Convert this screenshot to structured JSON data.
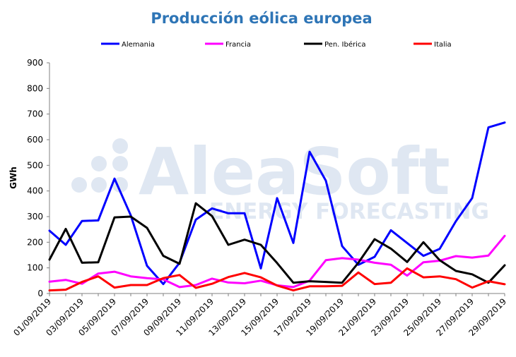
{
  "watermark": {
    "name": "AleaSoft",
    "subtitle": "ENERGY FORECASTING"
  },
  "chart_data": {
    "type": "line",
    "title": "Producción eólica europea",
    "ylabel": "GWh",
    "xlabel": "",
    "ylim": [
      0,
      900
    ],
    "yticks": [
      0,
      100,
      200,
      300,
      400,
      500,
      600,
      700,
      800,
      900
    ],
    "grid": false,
    "legend_position": "top",
    "x": [
      "01/09/2019",
      "02/09/2019",
      "03/09/2019",
      "04/09/2019",
      "05/09/2019",
      "06/09/2019",
      "07/09/2019",
      "08/09/2019",
      "09/09/2019",
      "10/09/2019",
      "11/09/2019",
      "12/09/2019",
      "13/09/2019",
      "14/09/2019",
      "15/09/2019",
      "16/09/2019",
      "17/09/2019",
      "18/09/2019",
      "19/09/2019",
      "20/09/2019",
      "21/09/2019",
      "22/09/2019",
      "23/09/2019",
      "24/09/2019",
      "25/09/2019",
      "26/09/2019",
      "27/09/2019",
      "28/09/2019",
      "29/09/2019"
    ],
    "xtick_labels": [
      "01/09/2019",
      "03/09/2019",
      "05/09/2019",
      "07/09/2019",
      "09/09/2019",
      "11/09/2019",
      "13/09/2019",
      "15/09/2019",
      "17/09/2019",
      "19/09/2019",
      "21/09/2019",
      "23/09/2019",
      "25/09/2019",
      "27/09/2019",
      "29/09/2019"
    ],
    "series": [
      {
        "name": "Alemania",
        "color": "#0000FF",
        "values": [
          245,
          190,
          283,
          285,
          448,
          305,
          108,
          37,
          120,
          288,
          332,
          313,
          313,
          98,
          372,
          197,
          553,
          440,
          185,
          112,
          143,
          247,
          197,
          147,
          174,
          282,
          372,
          648,
          667
        ]
      },
      {
        "name": "Francia",
        "color": "#FF00FF",
        "values": [
          46,
          53,
          38,
          78,
          85,
          67,
          60,
          55,
          25,
          33,
          58,
          43,
          40,
          50,
          32,
          25,
          50,
          130,
          138,
          132,
          120,
          112,
          70,
          122,
          128,
          146,
          140,
          148,
          225
        ]
      },
      {
        "name": "Pen. Ibérica",
        "color": "#000000",
        "values": [
          132,
          252,
          120,
          122,
          297,
          300,
          256,
          147,
          116,
          352,
          302,
          190,
          210,
          190,
          119,
          42,
          48,
          45,
          42,
          120,
          212,
          175,
          123,
          200,
          130,
          88,
          75,
          42,
          110
        ]
      },
      {
        "name": "Italia",
        "color": "#FF0000",
        "values": [
          12,
          15,
          45,
          67,
          23,
          33,
          33,
          60,
          72,
          22,
          38,
          64,
          80,
          63,
          31,
          12,
          28,
          28,
          30,
          82,
          37,
          42,
          98,
          63,
          67,
          56,
          23,
          48,
          36
        ]
      }
    ]
  }
}
